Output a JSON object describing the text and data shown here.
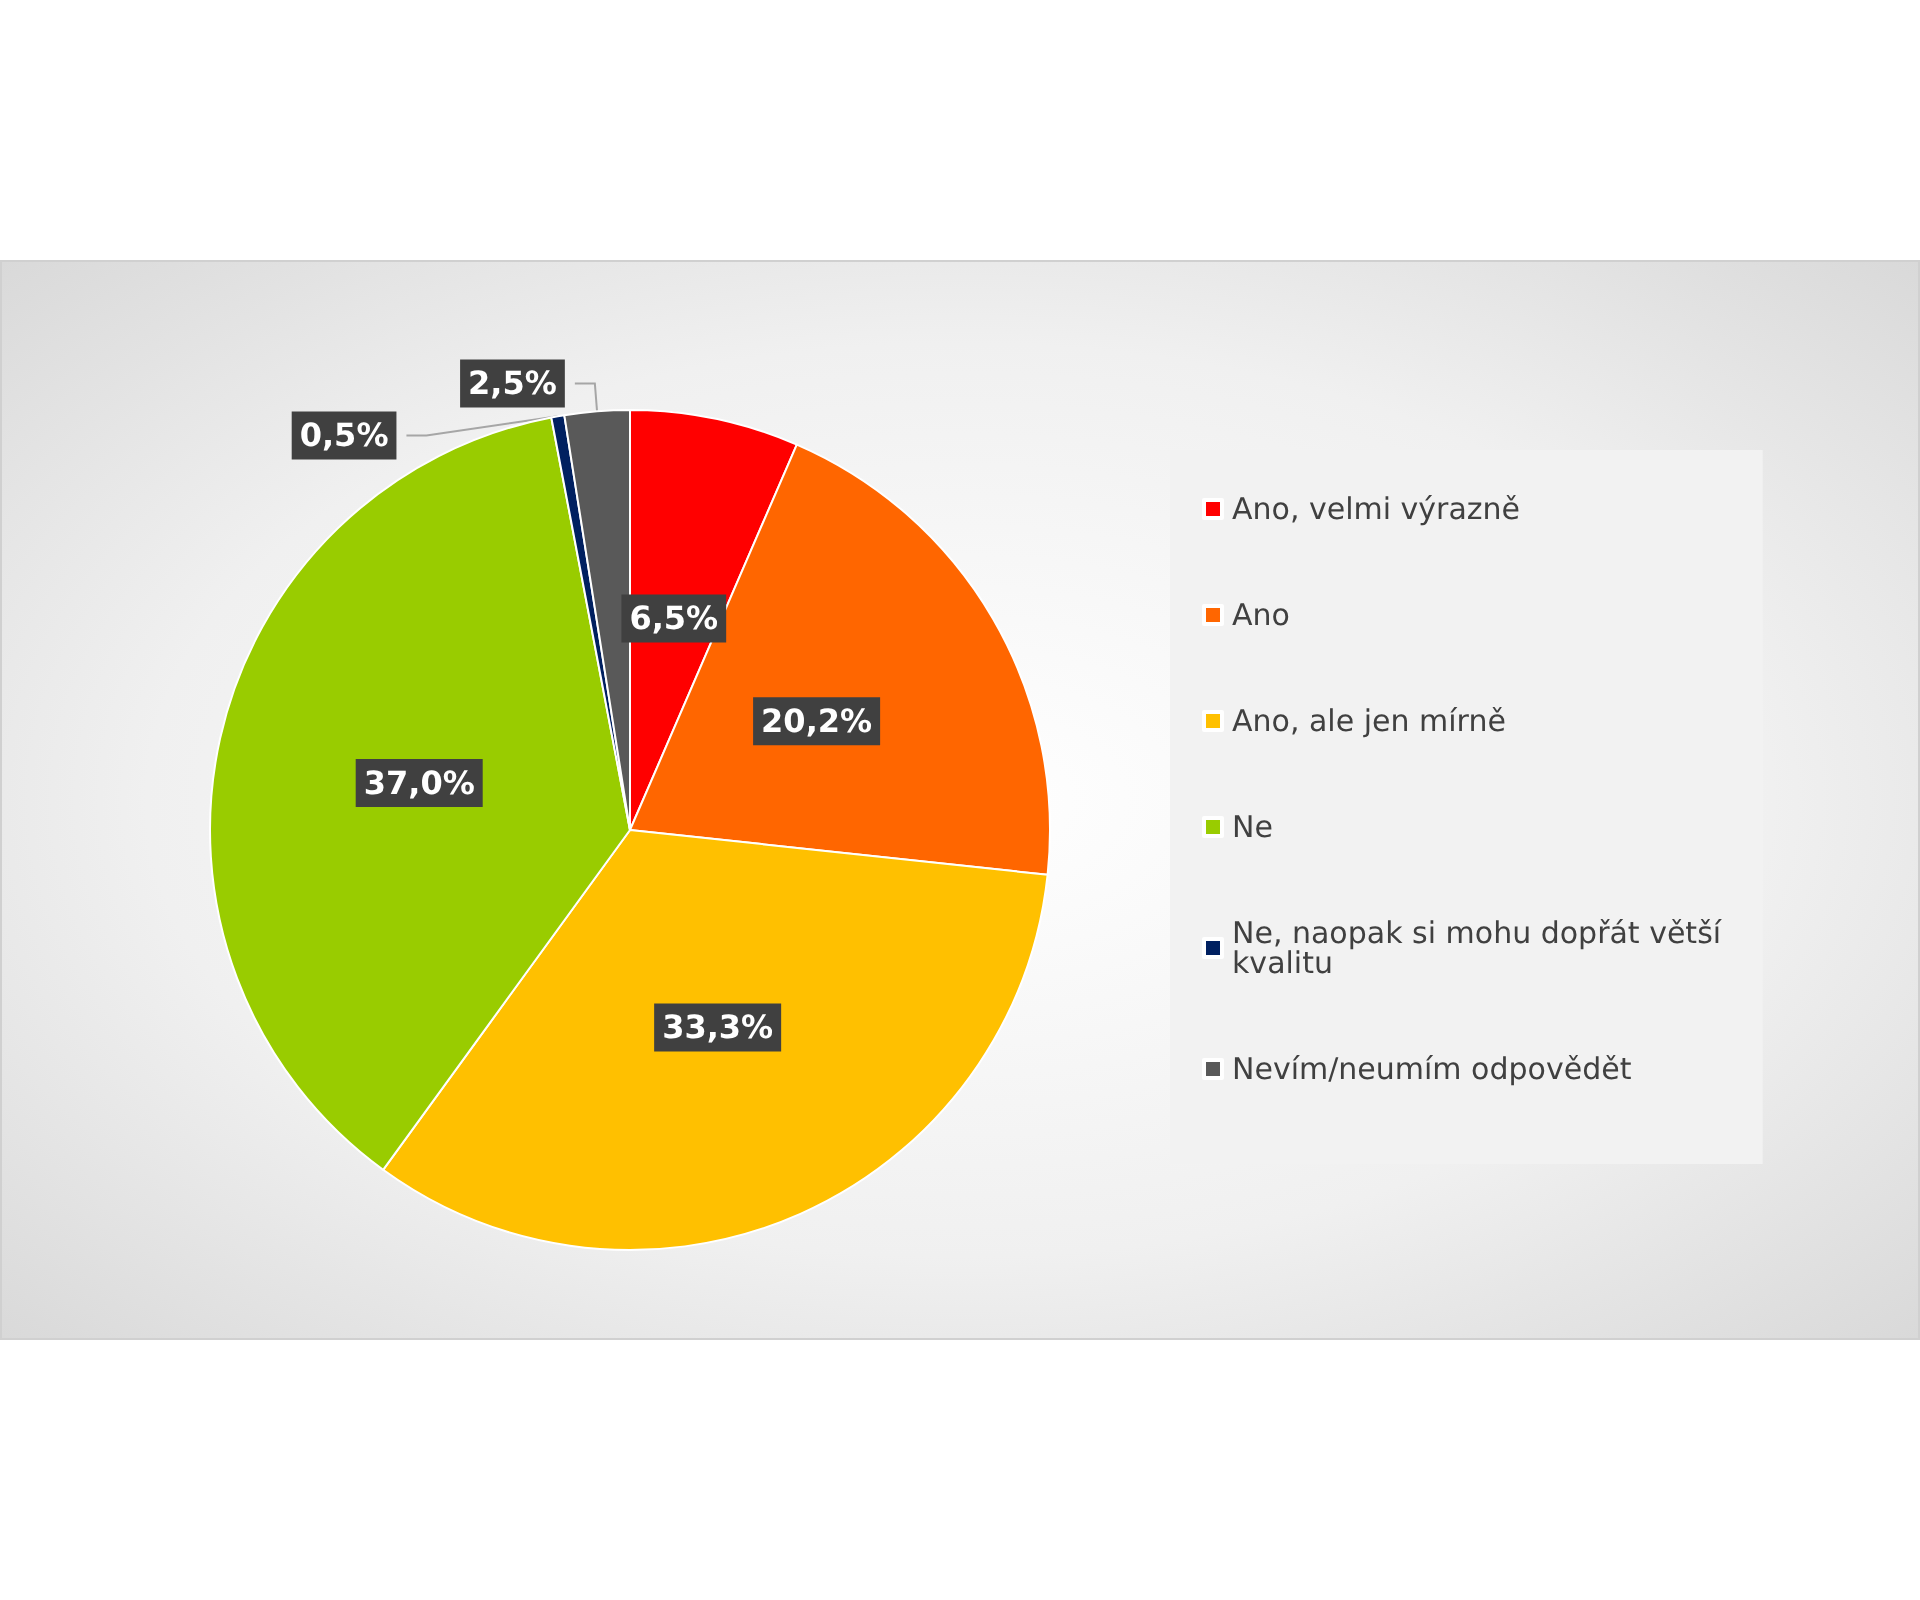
{
  "chart_data": {
    "type": "pie",
    "categories": [
      "Ano, velmi výrazně",
      "Ano",
      "Ano, ale jen mírně",
      "Ne",
      "Ne, naopak si mohu dopřát větší kvalitu",
      "Nevím/neumím odpovědět"
    ],
    "values": [
      6.5,
      20.2,
      33.3,
      37.0,
      0.5,
      2.5
    ],
    "colors": [
      "#ff0000",
      "#ff6600",
      "#ffc000",
      "#99cc00",
      "#002060",
      "#595959"
    ],
    "value_labels": [
      "6,5%",
      "20,2%",
      "33,3%",
      "37,0%",
      "0,5%",
      "2,5%"
    ],
    "legend": "right"
  }
}
